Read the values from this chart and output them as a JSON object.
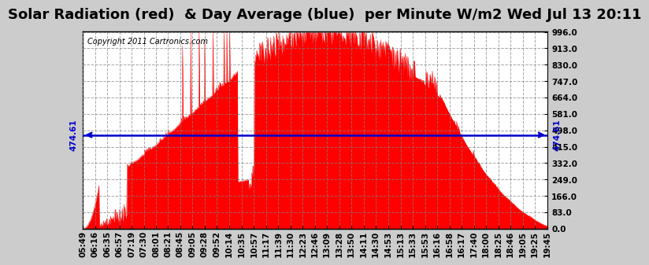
{
  "title": "Solar Radiation (red)  & Day Average (blue)  per Minute W/m2 Wed Jul 13 20:11",
  "copyright": "Copyright 2011 Cartronics.com",
  "avg_value": 474.61,
  "y_ticks": [
    0.0,
    83.0,
    166.0,
    249.0,
    332.0,
    415.0,
    498.0,
    581.0,
    664.0,
    747.0,
    830.0,
    913.0,
    996.0
  ],
  "ymax": 1000,
  "bar_color": "#ff0000",
  "avg_line_color": "#0000cc",
  "background_color": "#ffffff",
  "title_fontsize": 13,
  "tick_fontsize": 7.5,
  "fig_bg": "#cccccc",
  "x_labels": [
    "05:49",
    "06:16",
    "06:35",
    "06:57",
    "07:19",
    "07:30",
    "08:01",
    "08:21",
    "08:45",
    "09:05",
    "09:28",
    "09:52",
    "10:14",
    "10:35",
    "10:57",
    "11:17",
    "11:39",
    "11:30",
    "12:23",
    "12:46",
    "13:09",
    "13:28",
    "13:50",
    "14:11",
    "14:30",
    "14:53",
    "15:13",
    "15:33",
    "15:53",
    "16:16",
    "16:58",
    "16:17",
    "17:40",
    "18:00",
    "18:25",
    "18:46",
    "19:05",
    "19:25",
    "19:45"
  ]
}
